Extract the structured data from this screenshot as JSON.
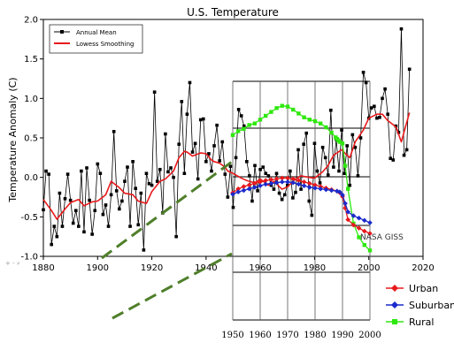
{
  "chart_data": [
    {
      "type": "line",
      "title": "U.S. Temperature",
      "xlabel": "",
      "ylabel": "Temperature Anomaly (C)",
      "xlim": [
        1880,
        2020
      ],
      "ylim": [
        -1.0,
        2.0
      ],
      "xticks": [
        "1880",
        "1900",
        "1920",
        "1940",
        "1960",
        "1980",
        "2000",
        "2020"
      ],
      "yticks": [
        "-1.0",
        "-0.5",
        "0.0",
        "0.5",
        "1.0",
        "1.5",
        "2.0"
      ],
      "legend_position": "top-left",
      "colors": {
        "annual": "#000000",
        "lowess": "#e8191b",
        "dashed": "#4f7f2a"
      },
      "series": [
        {
          "name": "Annual Mean",
          "style": "line-square-markers",
          "x": [
            1880,
            1881,
            1882,
            1883,
            1884,
            1885,
            1886,
            1887,
            1888,
            1889,
            1890,
            1891,
            1892,
            1893,
            1894,
            1895,
            1896,
            1897,
            1898,
            1899,
            1900,
            1901,
            1902,
            1903,
            1904,
            1905,
            1906,
            1907,
            1908,
            1909,
            1910,
            1911,
            1912,
            1913,
            1914,
            1915,
            1916,
            1917,
            1918,
            1919,
            1920,
            1921,
            1922,
            1923,
            1924,
            1925,
            1926,
            1927,
            1928,
            1929,
            1930,
            1931,
            1932,
            1933,
            1934,
            1935,
            1936,
            1937,
            1938,
            1939,
            1940,
            1941,
            1942,
            1943,
            1944,
            1945,
            1946,
            1947,
            1948,
            1949,
            1950,
            1951,
            1952,
            1953,
            1954,
            1955,
            1956,
            1957,
            1958,
            1959,
            1960,
            1961,
            1962,
            1963,
            1964,
            1965,
            1966,
            1967,
            1968,
            1969,
            1970,
            1971,
            1972,
            1973,
            1974,
            1975,
            1976,
            1977,
            1978,
            1979,
            1980,
            1981,
            1982,
            1983,
            1984,
            1985,
            1986,
            1987,
            1988,
            1989,
            1990,
            1991,
            1992,
            1993,
            1994,
            1995,
            1996,
            1997,
            1998,
            1999,
            2000,
            2001,
            2002,
            2003,
            2004,
            2005,
            2006,
            2007,
            2008,
            2009,
            2010,
            2011,
            2012,
            2013,
            2014,
            2015
          ],
          "values": [
            -0.41,
            0.08,
            0.04,
            -0.85,
            -0.62,
            -0.75,
            -0.2,
            -0.62,
            -0.27,
            0.04,
            -0.29,
            -0.58,
            -0.42,
            -0.62,
            0.08,
            -0.69,
            0.12,
            -0.29,
            -0.72,
            -0.42,
            0.17,
            0.05,
            -0.47,
            -0.35,
            -0.62,
            -0.22,
            0.58,
            -0.17,
            -0.4,
            -0.3,
            -0.05,
            0.13,
            -0.62,
            0.2,
            -0.14,
            -0.6,
            -0.2,
            -0.92,
            0.05,
            -0.08,
            -0.1,
            1.08,
            -0.05,
            0.1,
            -0.45,
            0.55,
            0.07,
            0.12,
            0.0,
            -0.75,
            0.42,
            0.96,
            0.05,
            0.8,
            1.2,
            0.32,
            0.43,
            -0.02,
            0.73,
            0.74,
            0.2,
            0.3,
            0.08,
            0.4,
            0.66,
            0.21,
            0.45,
            0.04,
            -0.25,
            0.14,
            -0.38,
            0.25,
            0.86,
            0.78,
            0.65,
            0.2,
            0.02,
            -0.3,
            0.15,
            -0.17,
            0.1,
            0.13,
            0.05,
            0.02,
            -0.1,
            -0.15,
            0.05,
            -0.2,
            -0.28,
            -0.22,
            -0.1,
            0.08,
            -0.26,
            -0.19,
            0.35,
            -0.15,
            0.42,
            0.56,
            -0.3,
            -0.48,
            0.43,
            0.08,
            -0.07,
            0.38,
            0.25,
            0.03,
            0.85,
            0.13,
            0.48,
            0.08,
            0.6,
            0.05,
            0.4,
            -0.1,
            0.54,
            0.38,
            0.02,
            0.5,
            1.33,
            1.2,
            0.75,
            0.88,
            0.9,
            0.75,
            0.76,
            1.0,
            1.12,
            0.8,
            0.24,
            0.22,
            0.65,
            0.57,
            1.88,
            0.28,
            0.35,
            1.37
          ]
        },
        {
          "name": "Lowess Smoothing",
          "style": "line",
          "x": [
            1880,
            1883,
            1885,
            1888,
            1890,
            1893,
            1895,
            1898,
            1900,
            1903,
            1905,
            1908,
            1910,
            1913,
            1915,
            1918,
            1920,
            1923,
            1925,
            1928,
            1930,
            1932,
            1933,
            1935,
            1938,
            1940,
            1942,
            1943,
            1945,
            1947,
            1948,
            1950,
            1953,
            1955,
            1958,
            1960,
            1963,
            1965,
            1968,
            1970,
            1973,
            1975,
            1978,
            1980,
            1983,
            1985,
            1987,
            1990,
            1992,
            1993,
            1995,
            1998,
            2000,
            2003,
            2005,
            2007,
            2010,
            2012,
            2015
          ],
          "values": [
            -0.28,
            -0.42,
            -0.53,
            -0.4,
            -0.32,
            -0.28,
            -0.36,
            -0.31,
            -0.3,
            -0.22,
            -0.05,
            -0.13,
            -0.2,
            -0.22,
            -0.3,
            -0.33,
            -0.18,
            -0.05,
            -0.02,
            0.08,
            0.25,
            0.33,
            0.32,
            0.27,
            0.31,
            0.3,
            0.22,
            0.2,
            0.18,
            0.13,
            0.08,
            0.05,
            -0.01,
            -0.04,
            -0.07,
            -0.02,
            -0.1,
            -0.05,
            -0.15,
            -0.12,
            -0.02,
            0.02,
            0.0,
            -0.01,
            0.07,
            0.15,
            0.28,
            0.35,
            0.28,
            0.25,
            0.45,
            0.6,
            0.75,
            0.8,
            0.8,
            0.72,
            0.64,
            0.45,
            0.82
          ]
        }
      ]
    },
    {
      "type": "line",
      "title": "",
      "xlabel": "",
      "ylabel": "",
      "xlim": [
        1950,
        2000
      ],
      "xticks": [
        "1950",
        "1960",
        "1970",
        "1980",
        "1990",
        "2000"
      ],
      "legend_position": "bottom-right",
      "annotations": [
        "NASA GISS"
      ],
      "colors": {
        "urban": "#e8191b",
        "suburban": "#1a2acc",
        "rural": "#2ee80e"
      },
      "series": [
        {
          "name": "Rural",
          "x": [
            1950,
            1952,
            1954,
            1956,
            1958,
            1960,
            1962,
            1964,
            1966,
            1968,
            1970,
            1972,
            1974,
            1976,
            1978,
            1980,
            1982,
            1984,
            1986,
            1987.5,
            1988,
            1988.5,
            1989,
            1990,
            1991,
            1992,
            1994,
            1996,
            1998,
            2000
          ],
          "values": [
            0.75,
            0.8,
            0.83,
            0.88,
            0.9,
            0.95,
            1.0,
            1.05,
            1.1,
            1.13,
            1.12,
            1.08,
            1.03,
            0.98,
            0.95,
            0.93,
            0.9,
            0.85,
            0.78,
            0.72,
            0.7,
            0.68,
            0.66,
            0.64,
            0.35,
            0.05,
            -0.4,
            -0.58,
            -0.68,
            -0.75
          ]
        },
        {
          "name": "Urban",
          "x": [
            1950,
            1952,
            1954,
            1956,
            1958,
            1960,
            1962,
            1964,
            1966,
            1968,
            1970,
            1972,
            1974,
            1976,
            1978,
            1980,
            1982,
            1984,
            1986,
            1988,
            1989,
            1990,
            1991,
            1992,
            1994,
            1996,
            1998,
            2000
          ],
          "values": [
            0.0,
            0.05,
            0.08,
            0.1,
            0.12,
            0.14,
            0.16,
            0.17,
            0.18,
            0.19,
            0.19,
            0.18,
            0.16,
            0.14,
            0.12,
            0.1,
            0.08,
            0.06,
            0.04,
            0.02,
            0.0,
            -0.05,
            -0.2,
            -0.35,
            -0.42,
            -0.46,
            -0.5,
            -0.53
          ]
        },
        {
          "name": "Suburban",
          "x": [
            1950,
            1952,
            1954,
            1956,
            1958,
            1960,
            1962,
            1964,
            1966,
            1968,
            1970,
            1972,
            1974,
            1976,
            1978,
            1980,
            1982,
            1984,
            1986,
            1988,
            1989,
            1990,
            1991,
            1992,
            1994,
            1996,
            1998,
            2000
          ],
          "values": [
            -0.02,
            0.01,
            0.03,
            0.05,
            0.07,
            0.09,
            0.11,
            0.12,
            0.13,
            0.14,
            0.14,
            0.13,
            0.11,
            0.09,
            0.07,
            0.06,
            0.05,
            0.04,
            0.03,
            0.02,
            0.01,
            -0.03,
            -0.14,
            -0.25,
            -0.3,
            -0.33,
            -0.36,
            -0.39
          ]
        }
      ]
    }
  ]
}
